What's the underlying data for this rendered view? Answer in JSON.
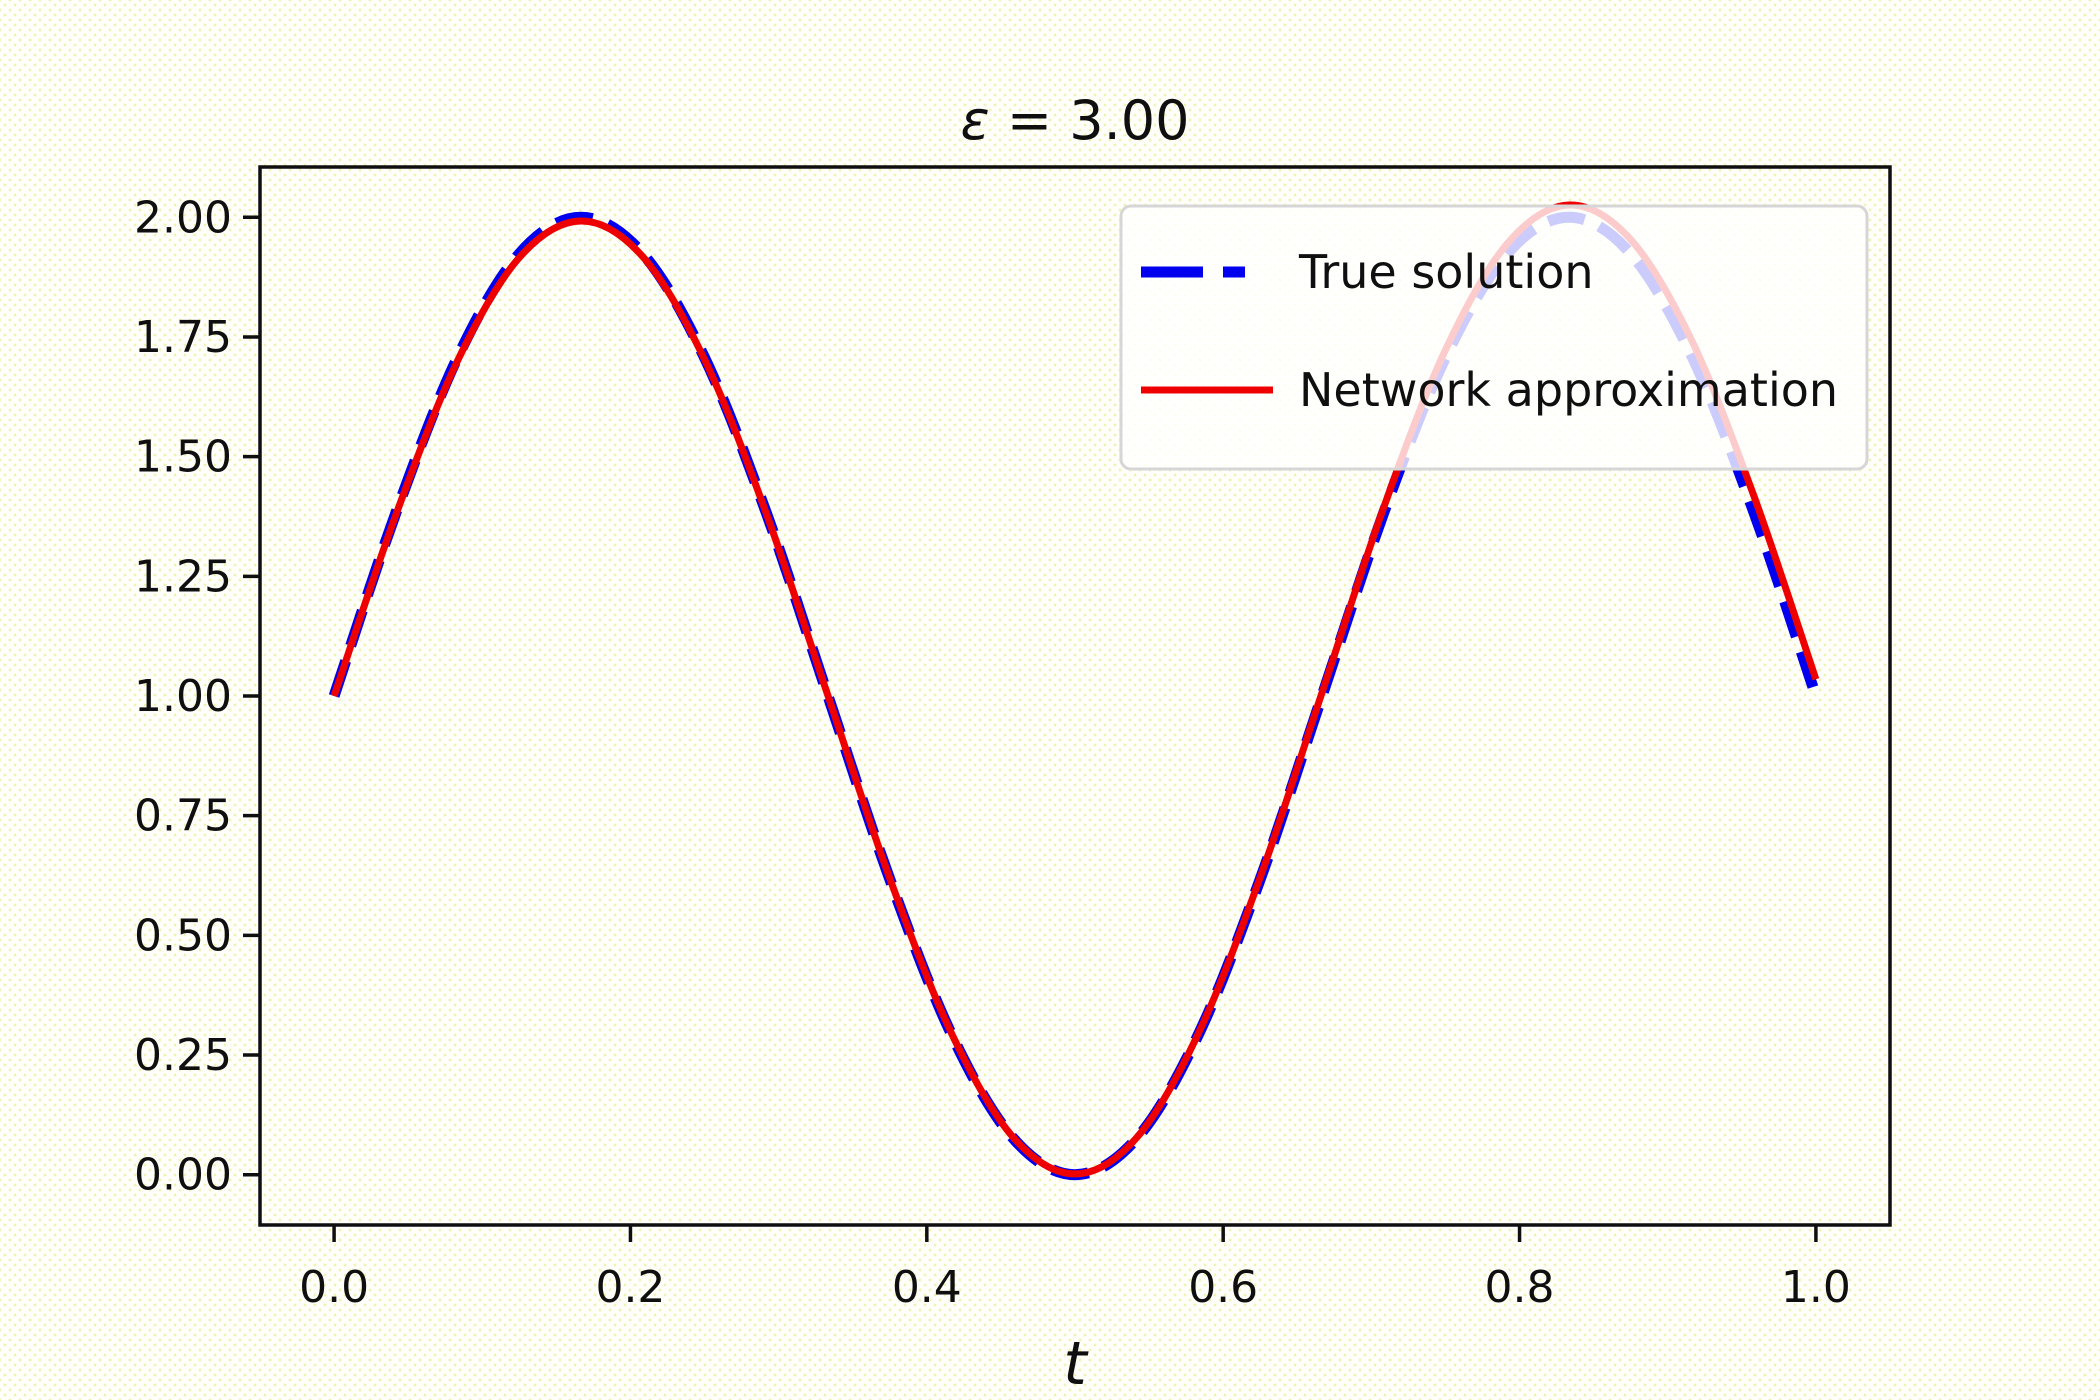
{
  "figure": {
    "title": "ε = 3.00",
    "title_symbol": "ε",
    "title_rest": " = 3.00",
    "xlabel": "t",
    "background_color": "#fefefa",
    "dot_pattern_color": "#ececa0",
    "axis_color": "#0f0f0f"
  },
  "axes": {
    "xlim": [
      -0.05,
      1.05
    ],
    "ylim": [
      -0.105,
      2.105
    ],
    "grid": false,
    "xticks": {
      "values": [
        0.0,
        0.2,
        0.4,
        0.6,
        0.8,
        1.0
      ],
      "labels": [
        "0.0",
        "0.2",
        "0.4",
        "0.6",
        "0.8",
        "1.0"
      ]
    },
    "yticks": {
      "values": [
        0.0,
        0.25,
        0.5,
        0.75,
        1.0,
        1.25,
        1.5,
        1.75,
        2.0
      ],
      "labels": [
        "0.00",
        "0.25",
        "0.50",
        "0.75",
        "1.00",
        "1.25",
        "1.50",
        "1.75",
        "2.00"
      ]
    }
  },
  "legend": {
    "position": "upper right",
    "border_color": "#d6d6d6",
    "fill_color": "rgba(255,255,255,0.8)",
    "items": [
      {
        "label": "True solution",
        "color": "#0000ee",
        "style": "dashed",
        "linewidth": 11
      },
      {
        "label": "Network approximation",
        "color": "#ee0000",
        "style": "solid",
        "linewidth": 7
      }
    ]
  },
  "chart_data": {
    "type": "line",
    "title": "ε = 3.00",
    "xlabel": "t",
    "ylabel": "",
    "xlim": [
      -0.05,
      1.05
    ],
    "ylim": [
      -0.105,
      2.105
    ],
    "grid": false,
    "legend_position": "upper right",
    "model": "y = 1 + sin(epsilon * pi * t), epsilon = 3.00",
    "x": [
      0,
      0.0417,
      0.0833,
      0.125,
      0.1667,
      0.2083,
      0.25,
      0.2917,
      0.3333,
      0.375,
      0.4167,
      0.4583,
      0.5,
      0.5417,
      0.5833,
      0.625,
      0.6667,
      0.7083,
      0.75,
      0.7917,
      0.8333,
      0.875,
      0.9167,
      0.9583,
      1
    ],
    "series": [
      {
        "name": "True solution",
        "color": "#0000ee",
        "style": "dashed",
        "linewidth": 11,
        "values": [
          1,
          1.3827,
          1.7071,
          1.9239,
          2,
          1.9239,
          1.7071,
          1.3827,
          1,
          0.6173,
          0.2929,
          0.0761,
          0,
          0.0761,
          0.2929,
          0.6173,
          1,
          1.3827,
          1.7071,
          1.9239,
          2,
          1.9239,
          1.7071,
          1.3827,
          1
        ]
      },
      {
        "name": "Network approximation",
        "color": "#ee0000",
        "style": "solid",
        "linewidth": 7,
        "values": [
          1,
          1.3785,
          1.7,
          1.9157,
          1.9922,
          1.9177,
          1.7032,
          1.3812,
          1.0004,
          0.619,
          0.2951,
          0.0781,
          0.0017,
          0.0777,
          0.2952,
          0.6212,
          1.0069,
          1.3937,
          1.723,
          1.9448,
          2.0257,
          1.9535,
          1.7395,
          1.4168,
          1.035
        ]
      }
    ]
  }
}
